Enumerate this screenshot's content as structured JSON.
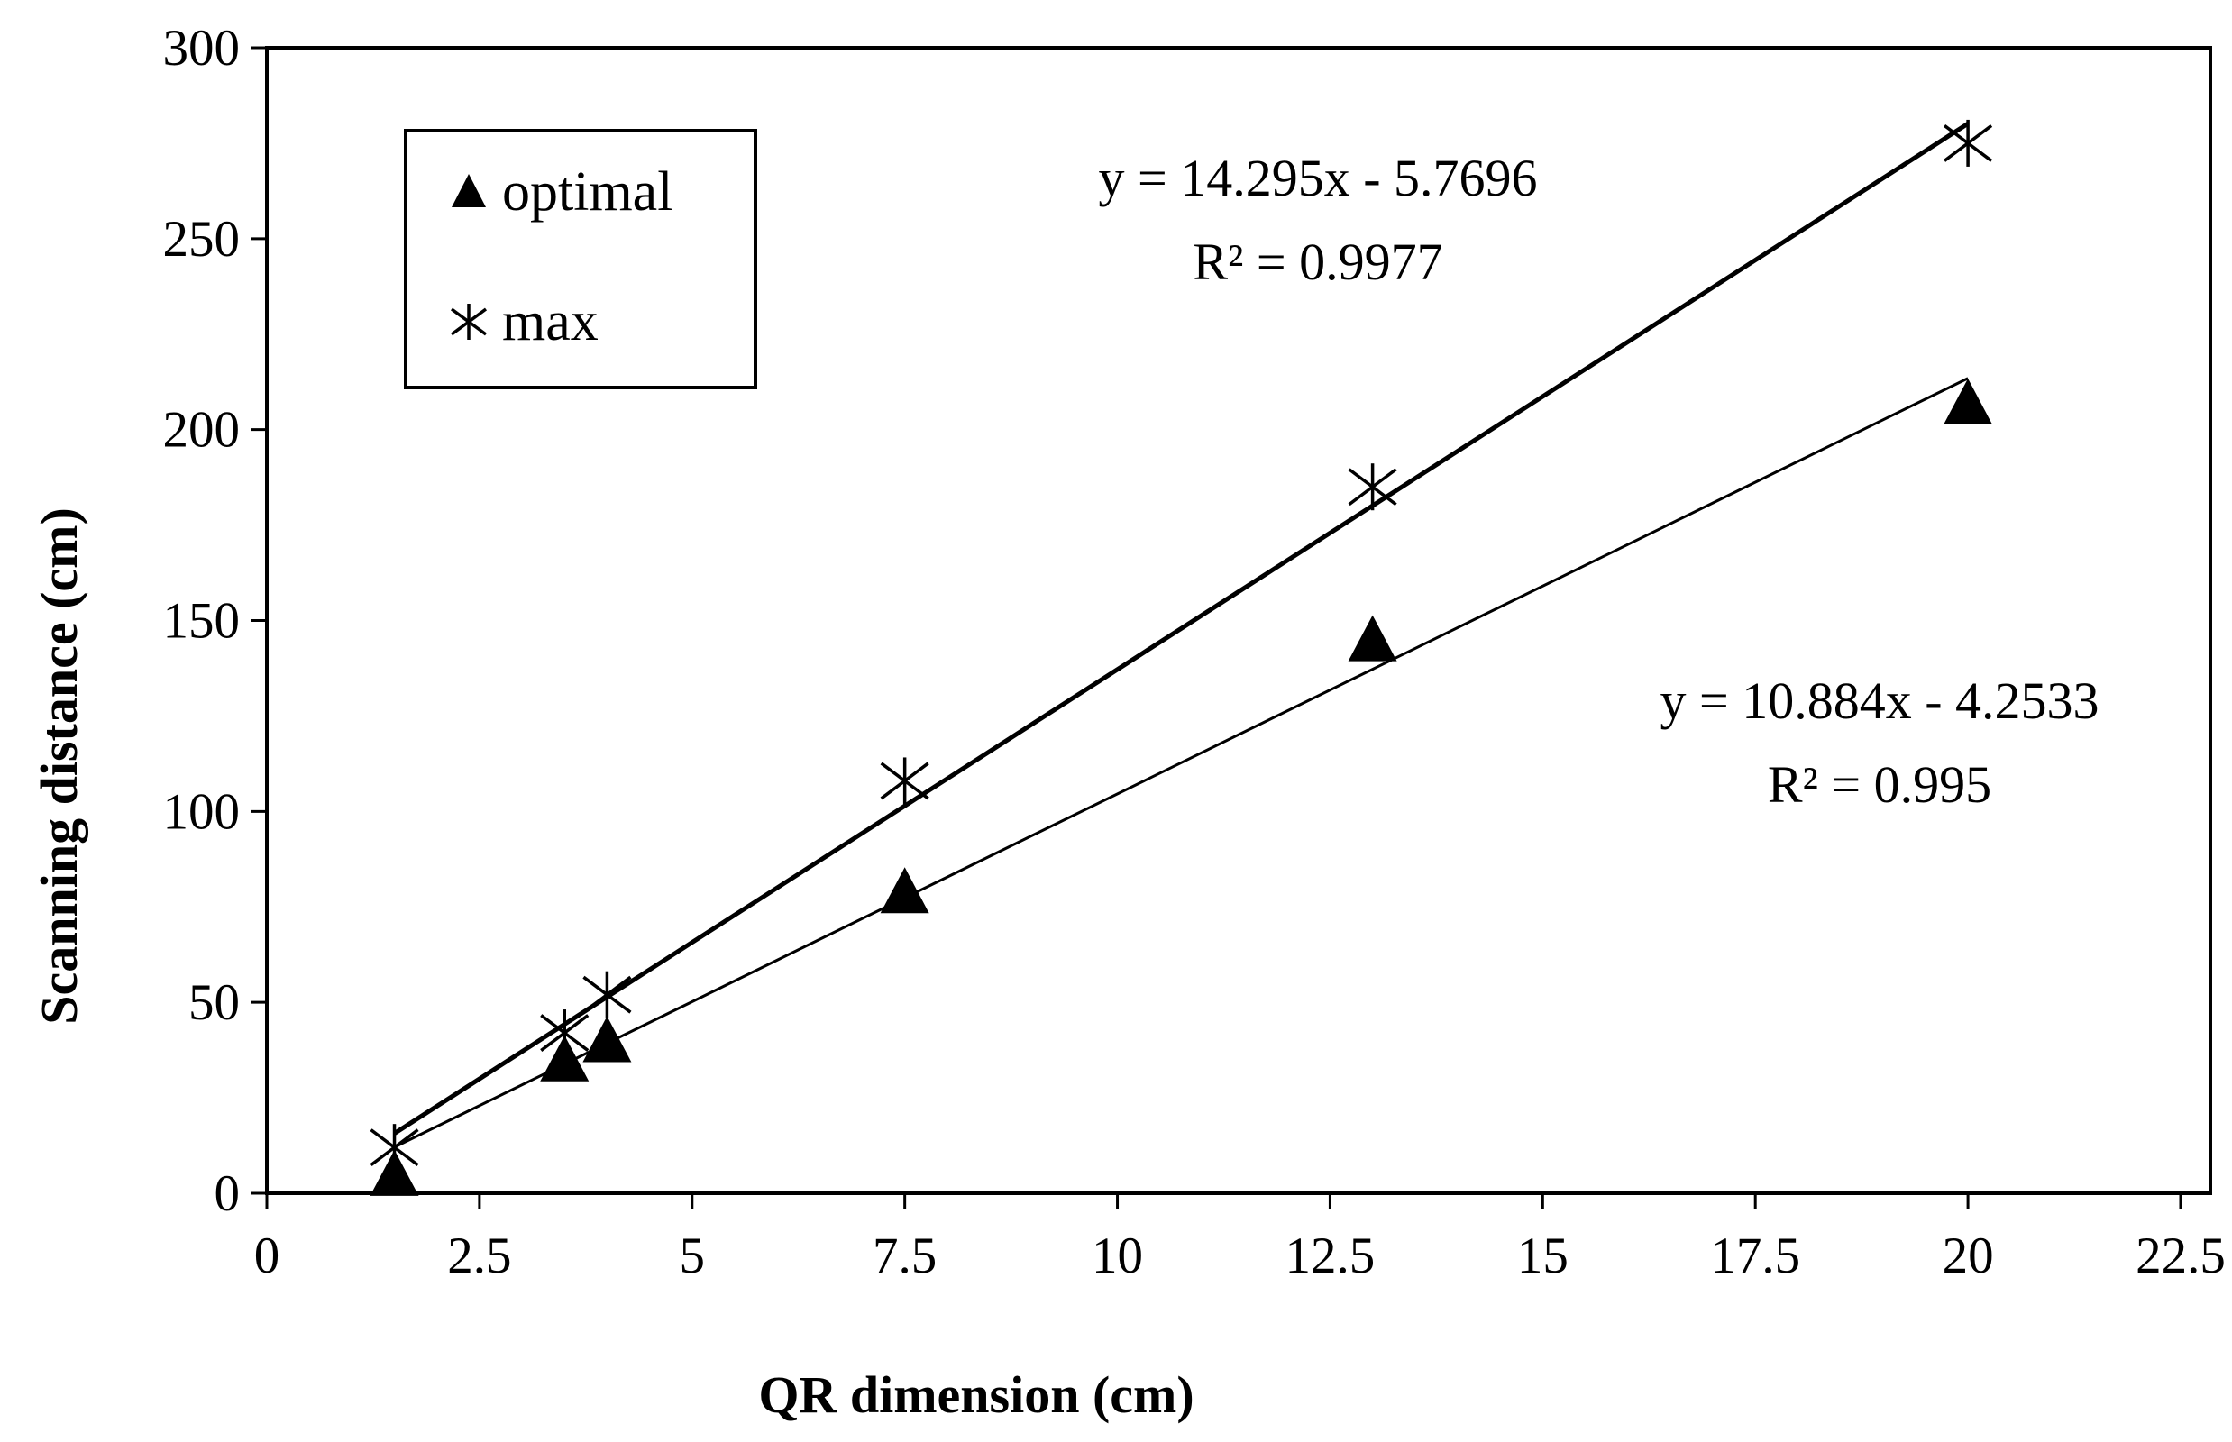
{
  "chart_data": {
    "type": "scatter",
    "title": "",
    "xlabel": "QR dimension (cm)",
    "ylabel": "Scanning distance (cm)",
    "xlim": [
      0,
      22.5
    ],
    "ylim": [
      0,
      300
    ],
    "xticks": [
      0,
      2.5,
      5,
      7.5,
      10,
      12.5,
      15,
      17.5,
      20,
      22.5
    ],
    "xtick_labels": [
      "0",
      "2.5",
      "5",
      "7.5",
      "10",
      "12.5",
      "15",
      "17.5",
      "20",
      "22.5"
    ],
    "yticks": [
      0,
      50,
      100,
      150,
      200,
      250,
      300
    ],
    "ytick_labels": [
      "0",
      "50",
      "100",
      "150",
      "200",
      "250",
      "300"
    ],
    "grid": false,
    "legend": {
      "position": "top-left",
      "entries": [
        "optimal",
        "max"
      ]
    },
    "series": [
      {
        "name": "optimal",
        "marker": "triangle",
        "x": [
          1.5,
          3.5,
          4,
          7.5,
          13,
          20
        ],
        "y": [
          5,
          35,
          40,
          79,
          145,
          207
        ],
        "trendline": {
          "slope": 10.884,
          "intercept": -4.2533,
          "x_range": [
            1.5,
            20
          ],
          "equation": "y = 10.884x - 4.2533",
          "r2": "R² = 0.995"
        }
      },
      {
        "name": "max",
        "marker": "asterisk",
        "x": [
          1.5,
          3.5,
          4,
          7.5,
          13,
          20
        ],
        "y": [
          12,
          42,
          52,
          108,
          185,
          275
        ],
        "trendline": {
          "slope": 14.295,
          "intercept": -5.7696,
          "x_range": [
            1.5,
            20
          ],
          "equation": "y = 14.295x - 5.7696",
          "r2": "R² = 0.9977"
        }
      }
    ]
  }
}
